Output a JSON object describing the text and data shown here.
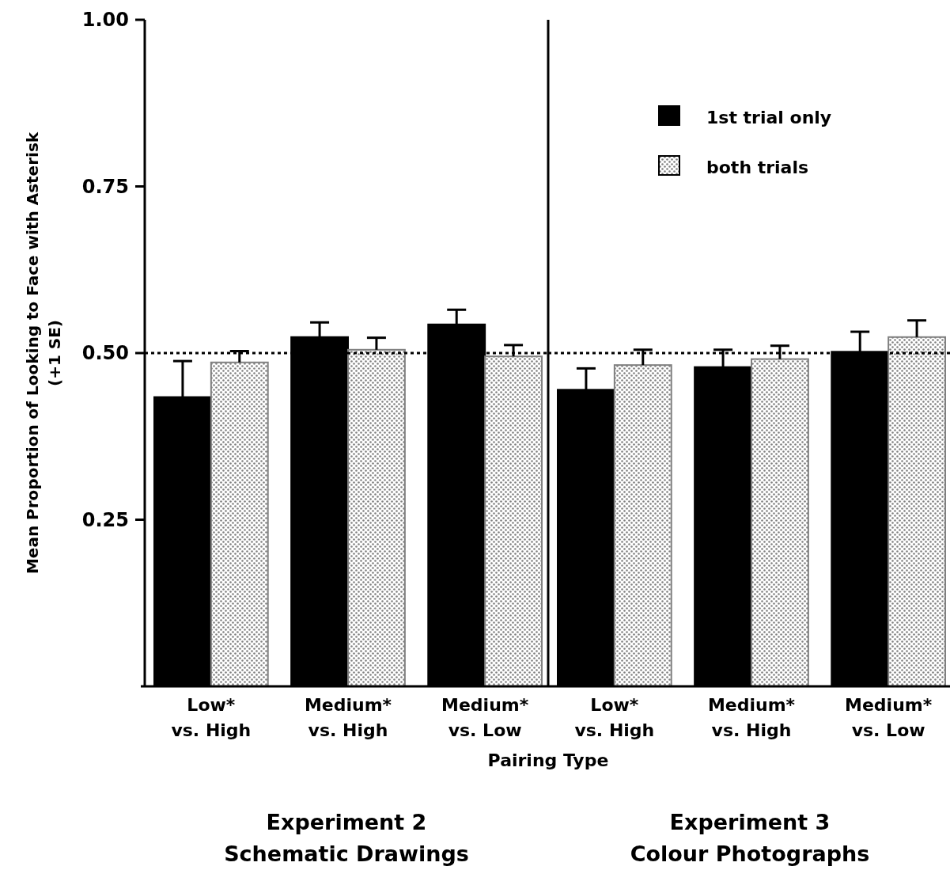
{
  "chart_data": [
    {
      "type": "bar",
      "title": "Experiment 2\nSchematic Drawings",
      "xlabel": "Pairing Type",
      "ylabel": "Mean Proportion of Looking to Face with Asterisk\n(+1  SE)",
      "categories": [
        "Low*\nvs. High",
        "Medium*\nvs. High",
        "Medium*\nvs. Low"
      ],
      "series": [
        {
          "color": "#000000",
          "values": [
            0.434,
            0.524,
            0.543
          ],
          "errors": [
            0.054,
            0.022,
            0.022
          ]
        },
        {
          "color": "#808080",
          "values": [
            0.486,
            0.505,
            0.495
          ],
          "errors": [
            0.017,
            0.018,
            0.017
          ]
        }
      ],
      "ylim": [
        0,
        1
      ],
      "yticks": [
        {
          "value": 0.25,
          "label": "0.25"
        },
        {
          "value": 0.5,
          "label": "0.50"
        },
        {
          "value": 0.75,
          "label": "0.75"
        },
        {
          "value": 1,
          "label": "1.00"
        }
      ],
      "ref_lines": [
        {
          "axis": "y",
          "value": 0.5,
          "line_style": "dotted"
        }
      ],
      "legend": false,
      "grid": false
    },
    {
      "type": "bar",
      "title": "Experiment 3\nColour Photographs",
      "categories": [
        "Low*\nvs. High",
        "Medium*\nvs. High",
        "Medium*\nvs. Low"
      ],
      "series": [
        {
          "name": "1st trial only",
          "color": "#000000",
          "values": [
            0.445,
            0.479,
            0.502
          ],
          "errors": [
            0.032,
            0.026,
            0.03
          ]
        },
        {
          "name": "both trials",
          "color": "#808080",
          "values": [
            0.482,
            0.491,
            0.524
          ],
          "errors": [
            0.023,
            0.02,
            0.025
          ]
        }
      ],
      "ylim": [
        0,
        1
      ],
      "tick_labels": "x",
      "ref_lines": [
        {
          "axis": "y",
          "value": 0.5,
          "line_style": "dotted"
        }
      ],
      "legend": "top right",
      "grid": false
    }
  ]
}
